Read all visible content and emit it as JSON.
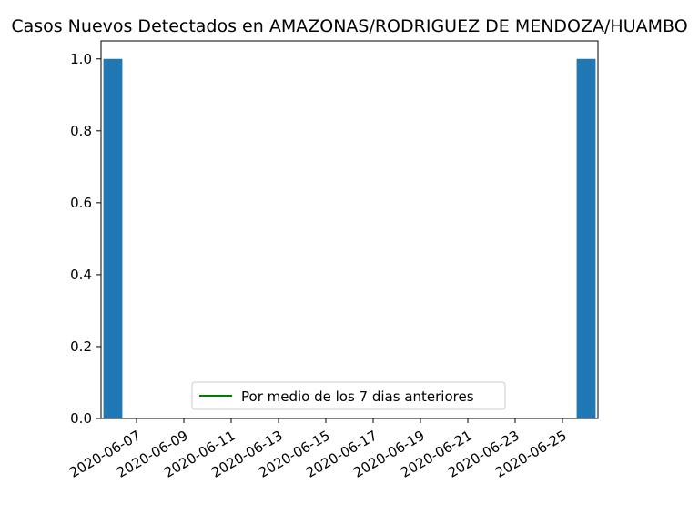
{
  "chart_data": {
    "type": "bar",
    "title": "Casos Nuevos Detectados en AMAZONAS/RODRIGUEZ DE MENDOZA/HUAMBO",
    "xlabel": "",
    "ylabel": "",
    "x_domain": [
      "2020-06-06",
      "2020-06-26"
    ],
    "ylim": [
      0,
      1.05
    ],
    "y_ticks": [
      "0.0",
      "0.2",
      "0.4",
      "0.6",
      "0.8",
      "1.0"
    ],
    "x_ticks": [
      "2020-06-07",
      "2020-06-09",
      "2020-06-11",
      "2020-06-13",
      "2020-06-15",
      "2020-06-17",
      "2020-06-19",
      "2020-06-21",
      "2020-06-23",
      "2020-06-25"
    ],
    "bars": [
      {
        "date": "2020-06-06",
        "value": 1.0
      },
      {
        "date": "2020-06-26",
        "value": 1.0
      }
    ],
    "series": [
      {
        "name": "Por medio de los 7 dias anteriores",
        "values": [],
        "color": "#008000"
      }
    ],
    "bar_color": "#1f77b4",
    "legend_placement": "bottom-center",
    "grid": false
  }
}
